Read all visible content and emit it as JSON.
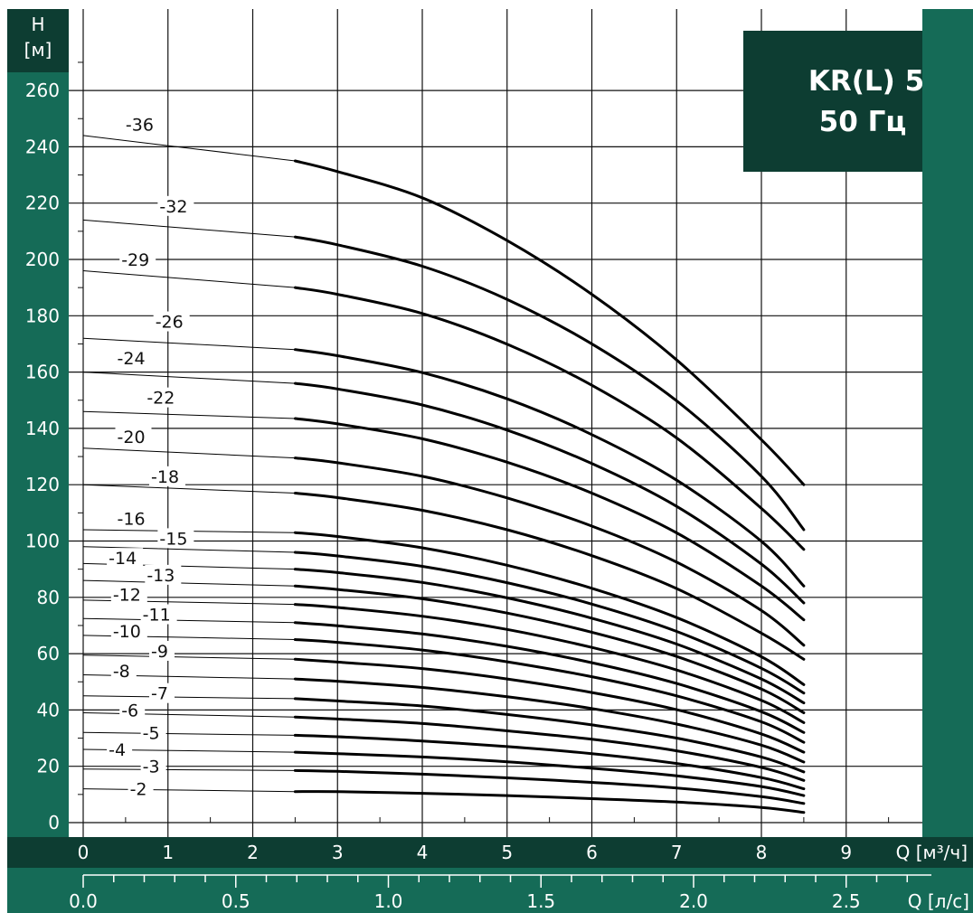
{
  "colors": {
    "panel": "#156b57",
    "band_dark": "#0d3d32",
    "badge": "#0d3d32",
    "grid": "#111111",
    "curve": "#000000"
  },
  "badge": {
    "line1": "KR(L) 5",
    "line2": "50 Гц"
  },
  "chart_data": {
    "type": "line",
    "title": "",
    "ylabel": "H\n[м]",
    "xlabel": "Q [м³/ч]",
    "x2label": "Q [л/с]",
    "xlim": [
      0,
      9.9
    ],
    "ylim": [
      0,
      270
    ],
    "y_ticks": [
      0,
      20,
      40,
      60,
      80,
      100,
      120,
      140,
      160,
      180,
      200,
      220,
      240,
      260
    ],
    "x_ticks": [
      0,
      1,
      2,
      3,
      4,
      5,
      6,
      7,
      8,
      9
    ],
    "x2_ticks": [
      0.0,
      0.5,
      1.0,
      1.5,
      2.0,
      2.5
    ],
    "x2_tick_labels": [
      "0.0",
      "0.5",
      "1.0",
      "1.5",
      "2.0",
      "2.5"
    ],
    "grid": true,
    "operating_range": [
      2.5,
      8.5
    ],
    "x": [
      0,
      2.5,
      3,
      4,
      5,
      6,
      7,
      8,
      8.5
    ],
    "series": [
      {
        "name": "-2",
        "label_at": [
          0.55,
          12
        ],
        "values": [
          12,
          11,
          11,
          10.4,
          9.6,
          8.5,
          7.3,
          5.4,
          3.6
        ]
      },
      {
        "name": "-3",
        "label_at": [
          0.7,
          20
        ],
        "values": [
          19,
          18.5,
          18.2,
          17.2,
          15.9,
          14.3,
          12.3,
          9.2,
          6.8
        ]
      },
      {
        "name": "-4",
        "label_at": [
          0.3,
          26
        ],
        "values": [
          26,
          25,
          24.5,
          23.3,
          21.6,
          19.3,
          16.6,
          12.8,
          9.6
        ]
      },
      {
        "name": "-5",
        "label_at": [
          0.7,
          32
        ],
        "values": [
          32,
          31,
          30.5,
          29,
          27,
          24.5,
          21,
          16,
          12
        ]
      },
      {
        "name": "-6",
        "label_at": [
          0.45,
          40
        ],
        "values": [
          39,
          37.5,
          36.8,
          35.2,
          32.6,
          29.6,
          25.5,
          19.6,
          15
        ]
      },
      {
        "name": "-7",
        "label_at": [
          0.8,
          46
        ],
        "values": [
          45,
          44,
          43.2,
          41.4,
          38.4,
          34.7,
          30,
          23.3,
          18
        ]
      },
      {
        "name": "-8",
        "label_at": [
          0.35,
          54
        ],
        "values": [
          52.5,
          51,
          50.2,
          48,
          44.7,
          40.5,
          35,
          27.5,
          21.5
        ]
      },
      {
        "name": "-9",
        "label_at": [
          0.8,
          61
        ],
        "values": [
          59.5,
          58,
          57,
          54.7,
          51,
          46.2,
          40.1,
          31.5,
          25
        ]
      },
      {
        "name": "-10",
        "label_at": [
          0.35,
          68
        ],
        "values": [
          66.5,
          65,
          64,
          61.3,
          57.1,
          51.8,
          45,
          35.8,
          28.5
        ]
      },
      {
        "name": "-11",
        "label_at": [
          0.7,
          74
        ],
        "values": [
          72.5,
          71,
          69.9,
          67,
          62.6,
          56.8,
          49.4,
          39.4,
          32
        ]
      },
      {
        "name": "-12",
        "label_at": [
          0.35,
          81
        ],
        "values": [
          79,
          77.5,
          76.4,
          73.3,
          68.6,
          62.2,
          54.2,
          43.4,
          35.5
        ]
      },
      {
        "name": "-13",
        "label_at": [
          0.75,
          88
        ],
        "values": [
          86,
          84,
          82.8,
          79.5,
          74.4,
          67.6,
          59,
          47.4,
          39
        ]
      },
      {
        "name": "-14",
        "label_at": [
          0.3,
          94
        ],
        "values": [
          92,
          90,
          88.8,
          85.3,
          79.8,
          72.6,
          63.4,
          51,
          42.5
        ]
      },
      {
        "name": "-15",
        "label_at": [
          0.9,
          101
        ],
        "values": [
          98,
          96,
          94.7,
          91,
          85.2,
          77.6,
          67.9,
          54.8,
          46
        ]
      },
      {
        "name": "-16",
        "label_at": [
          0.4,
          108
        ],
        "values": [
          104,
          103,
          101.6,
          97.6,
          91.4,
          83.2,
          72.8,
          58.9,
          49
        ]
      },
      {
        "name": "-18",
        "label_at": [
          0.8,
          123
        ],
        "values": [
          120,
          117,
          115.4,
          110.9,
          104,
          94.8,
          83.1,
          67.3,
          58
        ]
      },
      {
        "name": "-20",
        "label_at": [
          0.4,
          137
        ],
        "values": [
          133,
          129.5,
          127.8,
          123,
          115.3,
          105.3,
          92.5,
          75.3,
          63
        ]
      },
      {
        "name": "-22",
        "label_at": [
          0.75,
          151
        ],
        "values": [
          146,
          143.5,
          141.6,
          136.3,
          128,
          117,
          102.9,
          84,
          72
        ]
      },
      {
        "name": "-24",
        "label_at": [
          0.4,
          165
        ],
        "values": [
          160,
          156,
          154,
          148.3,
          139.4,
          127.5,
          112.3,
          91.8,
          78
        ]
      },
      {
        "name": "-26",
        "label_at": [
          0.85,
          178
        ],
        "values": [
          172,
          168,
          165.8,
          159.8,
          150.5,
          137.8,
          121.6,
          99.9,
          84
        ]
      },
      {
        "name": "-29",
        "label_at": [
          0.45,
          200
        ],
        "values": [
          196,
          190,
          187.6,
          180.8,
          169.9,
          155.3,
          136.6,
          111.6,
          97
        ]
      },
      {
        "name": "-32",
        "label_at": [
          0.9,
          219
        ],
        "values": [
          214,
          208,
          205.2,
          197.6,
          185.8,
          170,
          149.8,
          123,
          104
        ]
      },
      {
        "name": "-36",
        "label_at": [
          0.5,
          248
        ],
        "values": [
          244,
          235,
          231.2,
          221.9,
          206.7,
          187.6,
          164.3,
          136,
          120
        ]
      }
    ]
  }
}
